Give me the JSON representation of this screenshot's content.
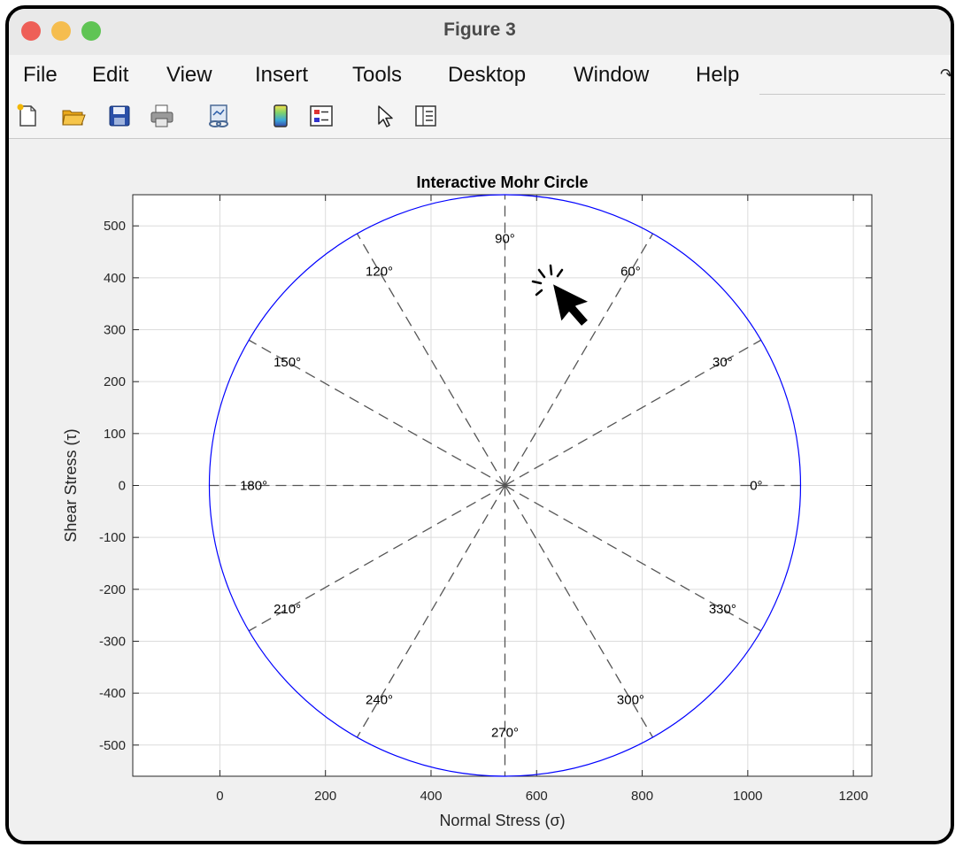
{
  "window": {
    "title": "Figure 3"
  },
  "menu": {
    "items": [
      "File",
      "Edit",
      "View",
      "Insert",
      "Tools",
      "Desktop",
      "Window",
      "Help"
    ]
  },
  "toolbar": {
    "tools": [
      "new-figure-icon",
      "open-file-icon",
      "save-icon",
      "print-icon",
      "link-plot-icon",
      "colorbar-icon",
      "legend-icon",
      "edit-plot-icon",
      "property-inspector-icon"
    ]
  },
  "colors": {
    "circle": "#0000ff",
    "spokes": "#555555",
    "grid": "#dcdcdc",
    "close": "#ee5f57",
    "minimize": "#f5bd4f",
    "maximize": "#5fc454"
  },
  "chart_data": {
    "type": "line",
    "title": "Interactive Mohr Circle",
    "xlabel": "Normal Stress (σ)",
    "ylabel": "Shear Stress (τ)",
    "xlim": [
      -165,
      1235
    ],
    "ylim": [
      -560,
      560
    ],
    "xticks": [
      0,
      200,
      400,
      600,
      800,
      1000,
      1200
    ],
    "yticks": [
      -500,
      -400,
      -300,
      -200,
      -100,
      0,
      100,
      200,
      300,
      400,
      500
    ],
    "grid": true,
    "center": [
      540,
      0
    ],
    "radius": 560,
    "angle_labels": [
      "0°",
      "30°",
      "60°",
      "90°",
      "120°",
      "150°",
      "180°",
      "210°",
      "240°",
      "270°",
      "300°",
      "330°"
    ]
  }
}
